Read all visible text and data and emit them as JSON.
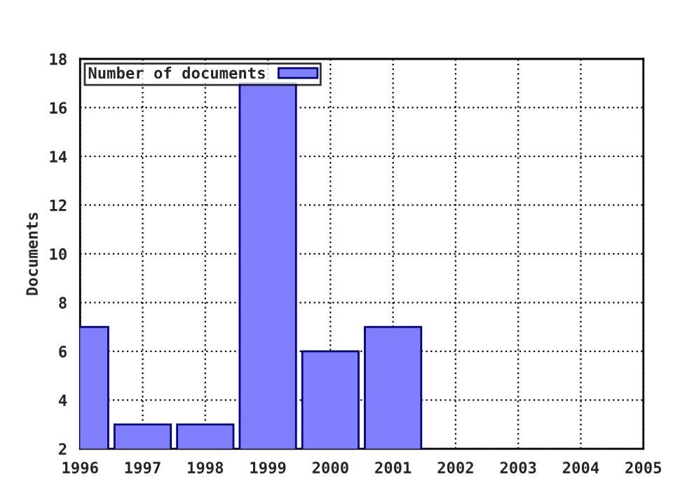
{
  "chart_data": {
    "type": "bar",
    "ylabel": "Documents",
    "x": [
      1996,
      1997,
      1998,
      1999,
      2000,
      2001
    ],
    "series": [
      {
        "name": "Number of documents",
        "color": "#8080ff",
        "values": [
          7,
          3,
          3,
          17,
          6,
          7
        ]
      }
    ],
    "xlim": [
      1996,
      2005
    ],
    "xticks": [
      1996,
      1997,
      1998,
      1999,
      2000,
      2001,
      2002,
      2003,
      2004,
      2005
    ],
    "ylim": [
      2,
      18
    ],
    "yticks": [
      2,
      4,
      6,
      8,
      10,
      12,
      14,
      16,
      18
    ],
    "grid": true,
    "legend": "top left"
  }
}
